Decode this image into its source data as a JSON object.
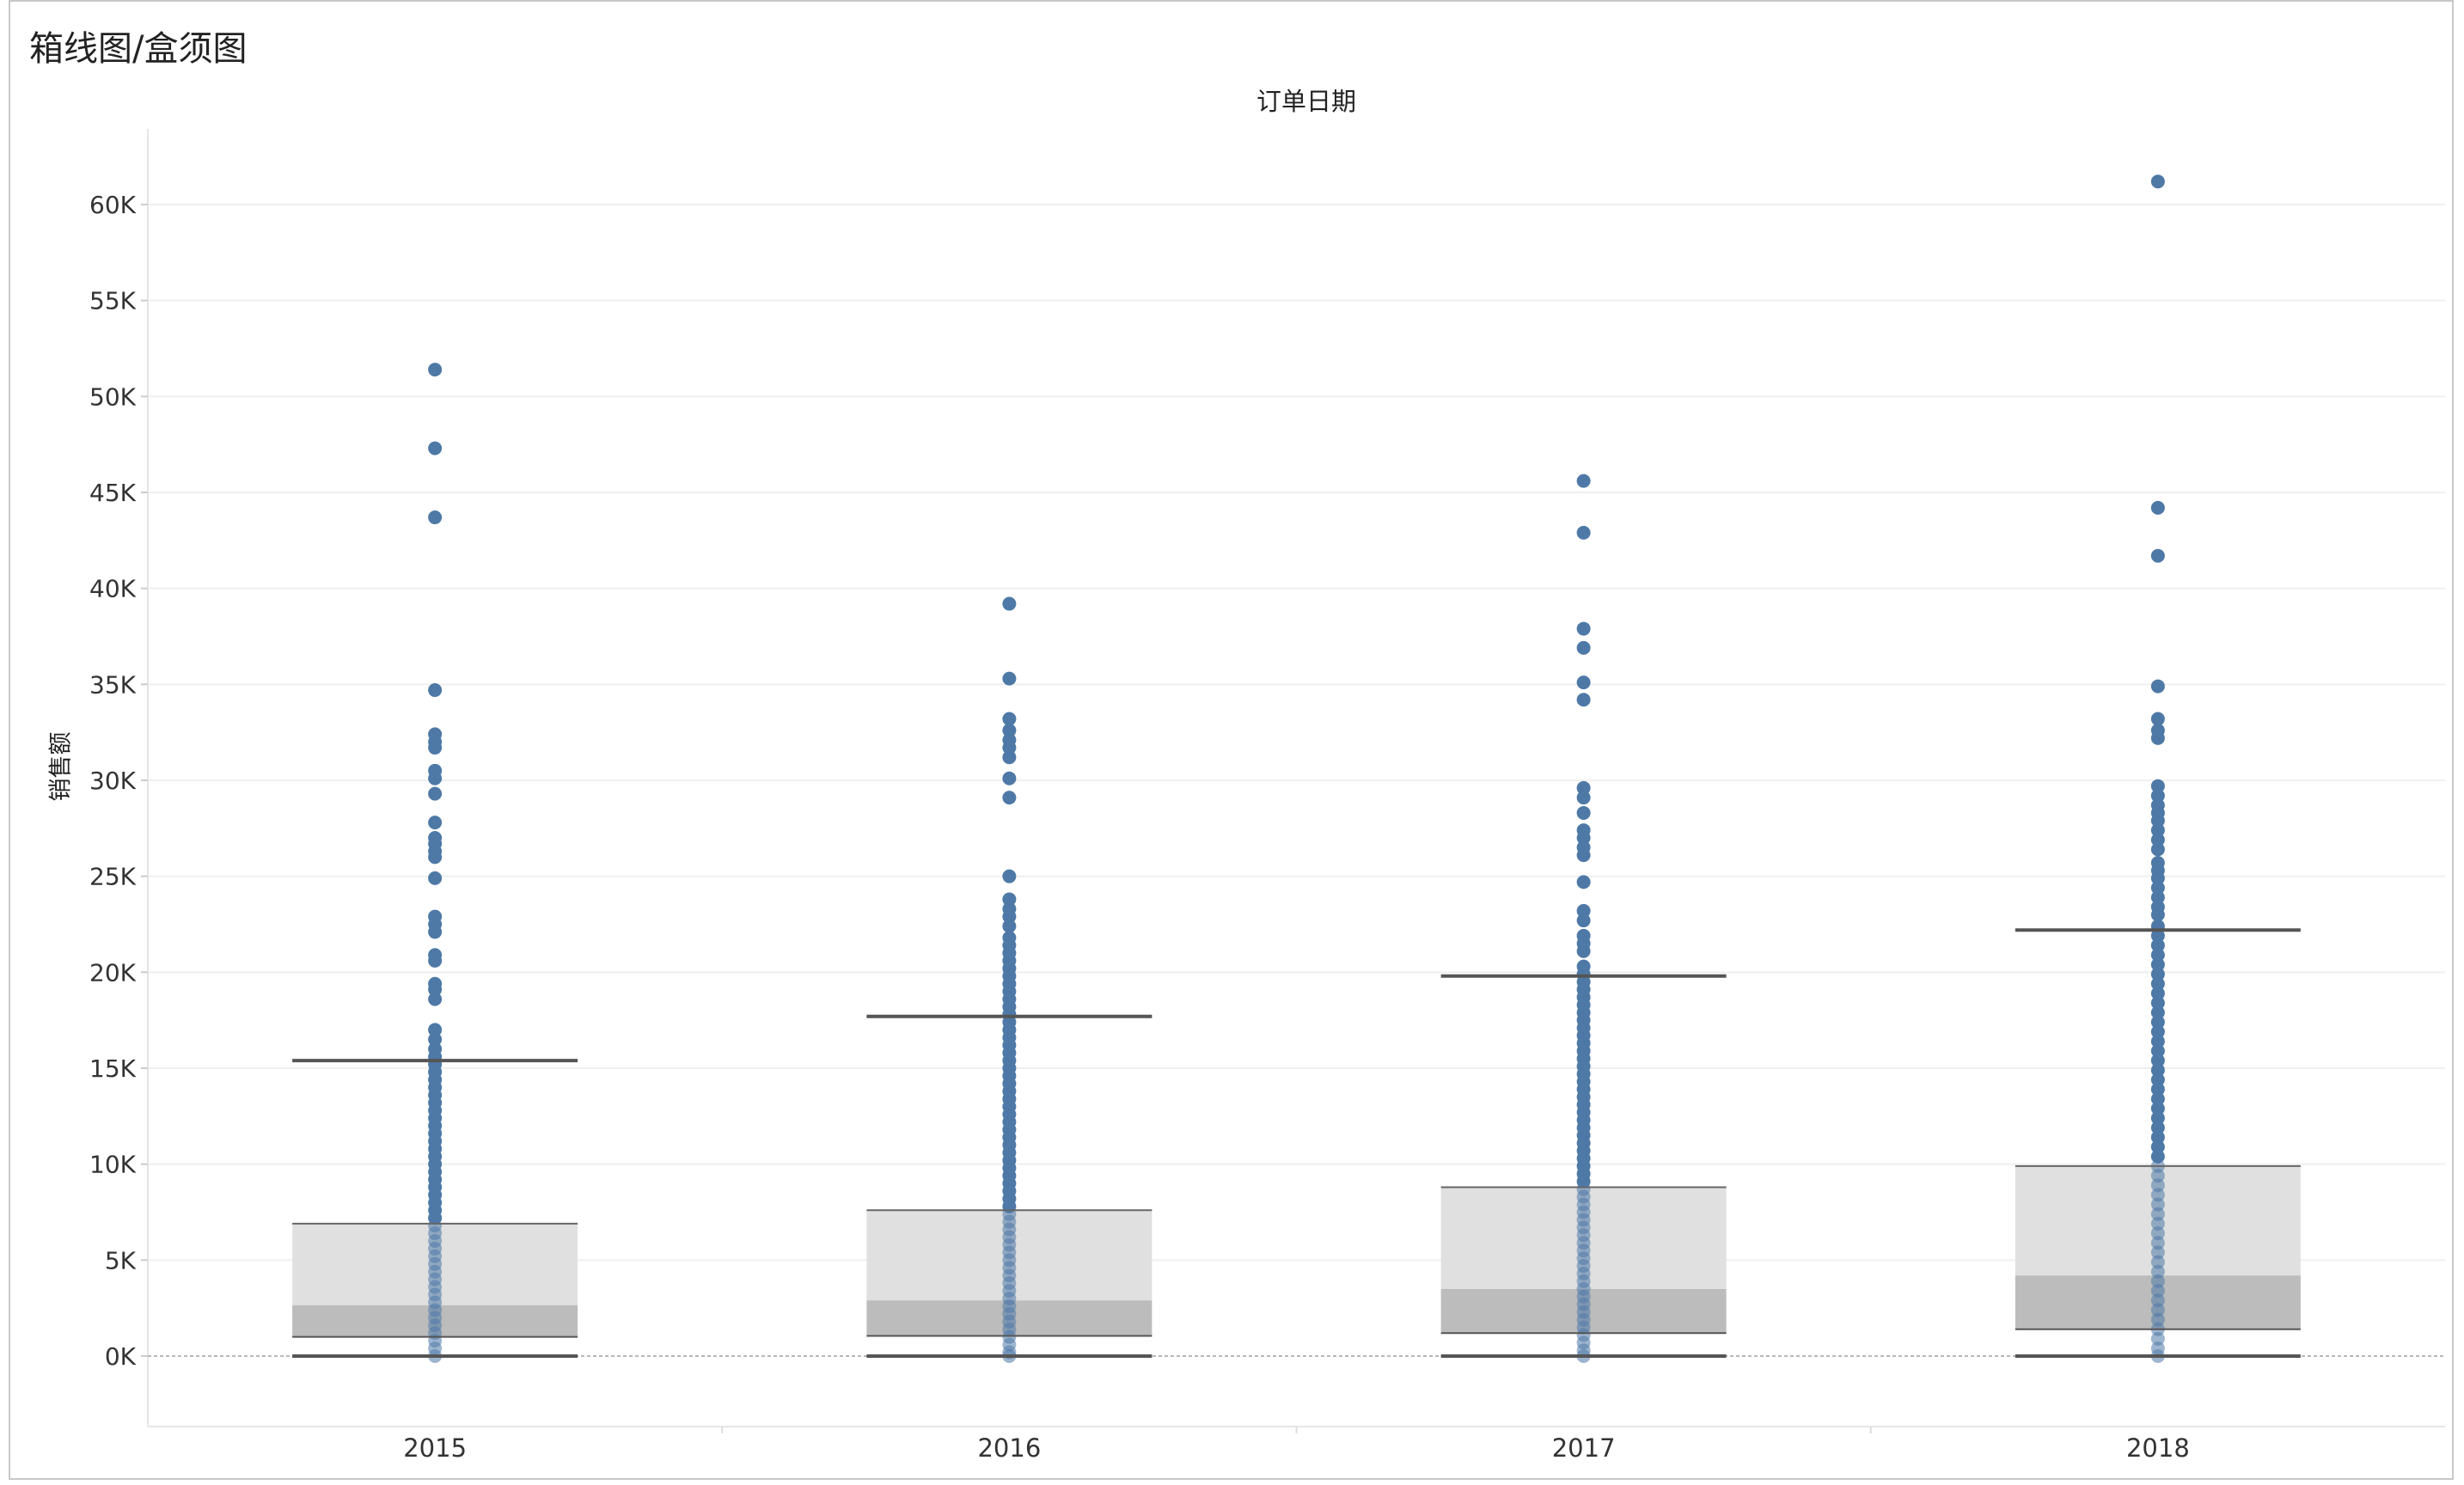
{
  "sheet": {
    "title": "箱线图/盒须图"
  },
  "chart_data": {
    "type": "box",
    "column_header": "订单日期",
    "xlabel": "",
    "ylabel": "销售额",
    "ylim": [
      -3500,
      64000
    ],
    "yticks": [
      {
        "value": 0,
        "label": "0K"
      },
      {
        "value": 5000,
        "label": "5K"
      },
      {
        "value": 10000,
        "label": "10K"
      },
      {
        "value": 15000,
        "label": "15K"
      },
      {
        "value": 20000,
        "label": "20K"
      },
      {
        "value": 25000,
        "label": "25K"
      },
      {
        "value": 30000,
        "label": "30K"
      },
      {
        "value": 35000,
        "label": "35K"
      },
      {
        "value": 40000,
        "label": "40K"
      },
      {
        "value": 45000,
        "label": "45K"
      },
      {
        "value": 50000,
        "label": "50K"
      },
      {
        "value": 55000,
        "label": "55K"
      },
      {
        "value": 60000,
        "label": "60K"
      }
    ],
    "grid": true,
    "legend": "none",
    "colors": {
      "point": "#4e79a7",
      "box_upper": "#e0e0e0",
      "box_lower": "#bcbcbc",
      "whisker": "#555555",
      "gridline": "#efefef",
      "zero_line": "#b8b8b8"
    },
    "categories": [
      "2015",
      "2016",
      "2017",
      "2018"
    ],
    "boxes": [
      {
        "category": "2015",
        "lower_whisker": 0,
        "q1": 1000,
        "median": 2650,
        "q3": 6900,
        "upper_whisker": 15400
      },
      {
        "category": "2016",
        "lower_whisker": 0,
        "q1": 1050,
        "median": 2900,
        "q3": 7600,
        "upper_whisker": 17700
      },
      {
        "category": "2017",
        "lower_whisker": 0,
        "q1": 1200,
        "median": 3500,
        "q3": 8800,
        "upper_whisker": 19800
      },
      {
        "category": "2018",
        "lower_whisker": 0,
        "q1": 1400,
        "median": 4200,
        "q3": 9900,
        "upper_whisker": 22200
      }
    ],
    "points": [
      {
        "category": "2015",
        "values": [
          51400,
          47300,
          43700,
          34700,
          32400,
          32000,
          31700,
          30500,
          30100,
          29300,
          27800,
          27000,
          26700,
          26300,
          26000,
          24900,
          22900,
          22500,
          22100,
          20900,
          20600,
          19400,
          19100,
          18600,
          17000,
          16500,
          16000,
          15600,
          15200,
          14800,
          14400,
          14000,
          13600,
          13200,
          12800,
          12400,
          12000,
          11600,
          11200,
          10800,
          10400,
          10000,
          9600,
          9200,
          8800,
          8400,
          8000,
          7600,
          7200,
          6800,
          6400,
          6000,
          5600,
          5200,
          4800,
          4400,
          4000,
          3600,
          3200,
          2800,
          2400,
          2000,
          1600,
          1200,
          800,
          400,
          0
        ]
      },
      {
        "category": "2016",
        "values": [
          39200,
          35300,
          33200,
          32600,
          32100,
          31700,
          31200,
          30100,
          29100,
          25000,
          23800,
          23300,
          22900,
          22400,
          21800,
          21400,
          21000,
          20600,
          20200,
          19800,
          19400,
          19000,
          18600,
          18200,
          17800,
          17400,
          17000,
          16600,
          16200,
          15800,
          15400,
          15000,
          14600,
          14200,
          13800,
          13400,
          13000,
          12600,
          12200,
          11800,
          11400,
          11000,
          10600,
          10200,
          9800,
          9400,
          9000,
          8600,
          8200,
          7800,
          7400,
          7000,
          6600,
          6200,
          5800,
          5400,
          5000,
          4600,
          4200,
          3800,
          3400,
          3000,
          2600,
          2200,
          1800,
          1400,
          1000,
          600,
          200,
          0
        ]
      },
      {
        "category": "2017",
        "values": [
          45600,
          42900,
          37900,
          36900,
          35100,
          34200,
          29600,
          29100,
          28300,
          27400,
          27000,
          26500,
          26100,
          24700,
          23200,
          22700,
          21900,
          21500,
          21100,
          20300,
          19900,
          19500,
          19100,
          18700,
          18300,
          17900,
          17500,
          17100,
          16700,
          16300,
          15900,
          15500,
          15100,
          14700,
          14300,
          13900,
          13500,
          13100,
          12700,
          12300,
          11900,
          11500,
          11100,
          10700,
          10300,
          9900,
          9500,
          9100,
          8700,
          8300,
          7900,
          7500,
          7100,
          6700,
          6300,
          5900,
          5500,
          5100,
          4700,
          4300,
          3900,
          3500,
          3100,
          2700,
          2300,
          1900,
          1500,
          1100,
          700,
          300,
          0
        ]
      },
      {
        "category": "2018",
        "values": [
          61200,
          44200,
          41700,
          34900,
          33200,
          32600,
          32200,
          29700,
          29200,
          28700,
          28300,
          27900,
          27400,
          26900,
          26400,
          25700,
          25300,
          24900,
          24400,
          23900,
          23400,
          23000,
          22400,
          21900,
          21400,
          20900,
          20400,
          19900,
          19400,
          18900,
          18400,
          17900,
          17400,
          16900,
          16400,
          15900,
          15400,
          14900,
          14400,
          13900,
          13400,
          12900,
          12400,
          11900,
          11400,
          10900,
          10400,
          9900,
          9400,
          8900,
          8400,
          7900,
          7400,
          6900,
          6400,
          5900,
          5400,
          4900,
          4400,
          3900,
          3400,
          2900,
          2400,
          1900,
          1400,
          900,
          400,
          0
        ]
      }
    ]
  }
}
